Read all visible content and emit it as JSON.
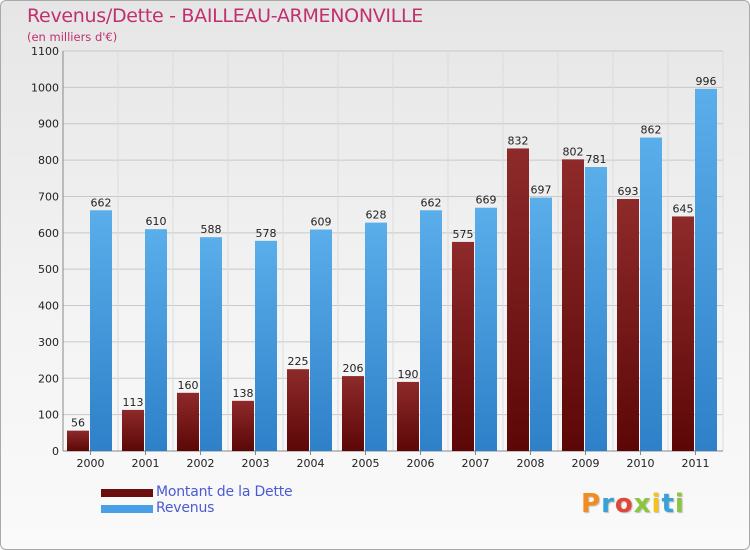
{
  "header": {
    "title": "Revenus/Dette - BAILLEAU-ARMENONVILLE",
    "subtitle": "(en milliers d'€)"
  },
  "legend": {
    "debt_label": "Montant de la Dette",
    "revenue_label": "Revenus"
  },
  "logo": {
    "text": "Proxiti"
  },
  "colors": {
    "debt": "#7a1a1a",
    "revenue": "#4aa0e6",
    "title": "#c0306f",
    "legend_text": "#4a5ad6"
  },
  "chart_data": {
    "type": "bar",
    "title": "Revenus/Dette - BAILLEAU-ARMENONVILLE",
    "subtitle": "(en milliers d'€)",
    "categories": [
      "2000",
      "2001",
      "2002",
      "2003",
      "2004",
      "2005",
      "2006",
      "2007",
      "2008",
      "2009",
      "2010",
      "2011"
    ],
    "series": [
      {
        "name": "Montant de la Dette",
        "values": [
          56,
          113,
          160,
          138,
          225,
          206,
          190,
          575,
          832,
          802,
          693,
          645
        ]
      },
      {
        "name": "Revenus",
        "values": [
          662,
          610,
          588,
          578,
          609,
          628,
          662,
          669,
          697,
          781,
          862,
          996
        ]
      }
    ],
    "ylim": [
      0,
      1100
    ],
    "yticks": [
      0,
      100,
      200,
      300,
      400,
      500,
      600,
      700,
      800,
      900,
      1000,
      1100
    ],
    "grid": true,
    "legend_position": "bottom-left"
  }
}
